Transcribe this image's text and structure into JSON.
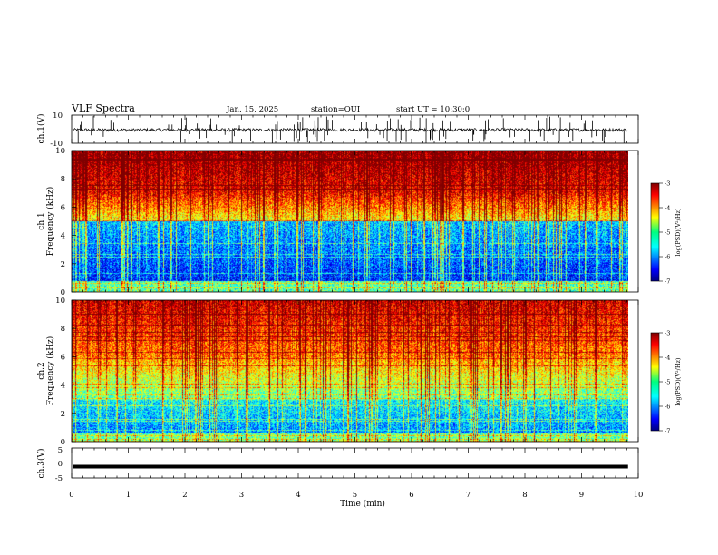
{
  "header": {
    "title": "VLF Spectra",
    "date": "Jan. 15, 2025",
    "station": "station=OUI",
    "start_ut": "start UT = 10:30:0"
  },
  "chart_data": [
    {
      "type": "line",
      "name": "ch1-waveform",
      "ylabel": "ch.1(V)",
      "ylim": [
        -10,
        10
      ],
      "ytick_labels": [
        "10",
        "-10"
      ],
      "xlim": [
        0,
        10
      ],
      "description_level": -0.5
    },
    {
      "type": "heatmap",
      "name": "ch1-spectrogram",
      "ylabel_lines": [
        "ch.1",
        "Frequency (kHz)"
      ],
      "ylim": [
        0,
        10
      ],
      "ytick_labels": [
        "0",
        "2",
        "4",
        "6",
        "8",
        "10"
      ],
      "xlim": [
        0,
        10
      ],
      "colorbar": {
        "label": "log(PSD)(V²/Hz)",
        "range": [
          -7,
          -3
        ],
        "tick_labels": [
          "-3",
          "-4",
          "-5",
          "-6",
          "-7"
        ],
        "colormap": "jet"
      }
    },
    {
      "type": "heatmap",
      "name": "ch2-spectrogram",
      "ylabel_lines": [
        "ch.2",
        "Frequency (kHz)"
      ],
      "ylim": [
        0,
        10
      ],
      "ytick_labels": [
        "0",
        "2",
        "4",
        "6",
        "8",
        "10"
      ],
      "xlim": [
        0,
        10
      ],
      "colorbar": {
        "label": "log(PSD)(V²/Hz)",
        "range": [
          -7,
          -3
        ],
        "tick_labels": [
          "-3",
          "-4",
          "-5",
          "-6",
          "-7"
        ],
        "colormap": "jet"
      }
    },
    {
      "type": "line",
      "name": "ch3-waveform",
      "ylabel": "ch.3(V)",
      "ylim": [
        -5,
        5
      ],
      "ytick_labels": [
        "5",
        "0",
        "-5"
      ],
      "xlim": [
        0,
        10
      ],
      "level": -1.2
    }
  ],
  "xaxis": {
    "label": "Time (min)",
    "tick_labels": [
      "0",
      "1",
      "2",
      "3",
      "4",
      "5",
      "6",
      "7",
      "8",
      "9",
      "10"
    ],
    "range": [
      0,
      10
    ],
    "data_end": 9.82
  },
  "colors": {
    "trace": "#000000",
    "axes": "#000000",
    "background": "#ffffff"
  }
}
